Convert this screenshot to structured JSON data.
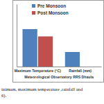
{
  "chart_data": {
    "type": "bar",
    "categories": [
      "Maximum Temperature (°C)",
      "Rainfall (mm)"
    ],
    "series": [
      {
        "name": "Pre Monsoon",
        "color": "#4f81bd",
        "values": [
          36,
          14
        ]
      },
      {
        "name": "Post Monsoon",
        "color": "#c0504d",
        "values": [
          29,
          0
        ]
      }
    ],
    "x_label": "Meteorological Observatory RRS Dhaula",
    "annotations": [
      "inimum, maximum temperature ,rainfall and",
      "6)."
    ],
    "ylim": [
      0,
      60
    ],
    "yticks": [],
    "grid": false,
    "legend": "top",
    "tick_labels": "x"
  }
}
